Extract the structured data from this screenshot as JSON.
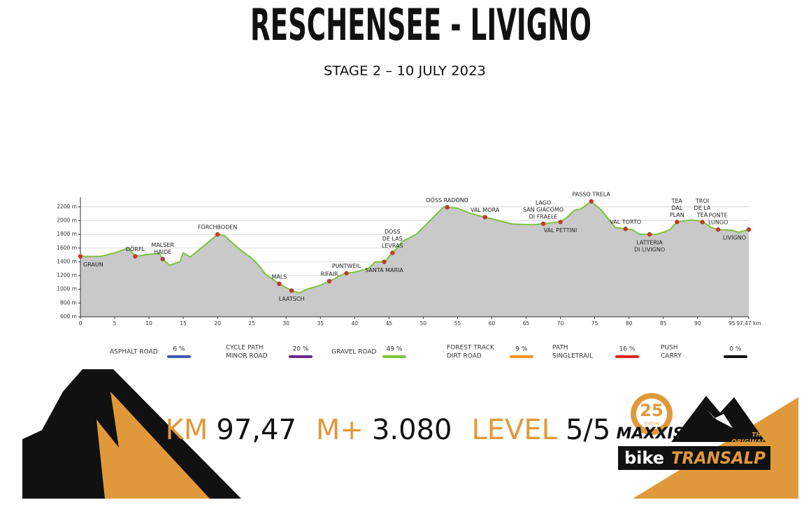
{
  "chart_data": {
    "type": "elevation",
    "title": "RESCHENSEE - LIVIGNO",
    "subtitle": "STAGE 2 – 10 JULY 2023",
    "x": [
      0,
      3,
      5,
      7,
      8,
      10,
      11.5,
      12,
      13,
      14.5,
      15,
      16,
      18,
      20,
      21,
      23,
      25,
      26,
      27,
      29,
      31,
      32,
      33,
      35,
      37,
      38.5,
      40,
      42,
      43,
      44.5,
      45,
      46,
      47,
      49,
      51,
      53,
      55,
      57,
      59,
      61,
      63,
      66,
      68,
      70,
      71,
      72,
      73,
      74.5,
      76,
      78,
      79.5,
      80.5,
      81.5,
      84,
      85,
      86,
      87,
      89,
      90,
      91,
      92,
      93,
      95,
      96,
      97.47
    ],
    "values": [
      1480,
      1480,
      1530,
      1600,
      1480,
      1510,
      1520,
      1440,
      1350,
      1400,
      1530,
      1470,
      1630,
      1800,
      1780,
      1600,
      1450,
      1350,
      1220,
      1080,
      970,
      950,
      1000,
      1060,
      1150,
      1230,
      1250,
      1300,
      1400,
      1400,
      1480,
      1580,
      1700,
      1800,
      2000,
      2200,
      2180,
      2100,
      2050,
      2000,
      1950,
      1940,
      1960,
      1980,
      2050,
      2150,
      2170,
      2280,
      2150,
      1900,
      1880,
      1870,
      1800,
      1800,
      1830,
      1870,
      1980,
      2010,
      2000,
      1970,
      1900,
      1870,
      1860,
      1830,
      1870
    ],
    "fill_color": "#c9c9c9",
    "line_color": "#7dc242",
    "point_color": "#c0392b",
    "xlim": [
      0,
      97.47
    ],
    "xticks": [
      0,
      5,
      10,
      15,
      20,
      25,
      30,
      35,
      40,
      45,
      50,
      55,
      60,
      65,
      70,
      75,
      80,
      85,
      90,
      95,
      {
        "value": 97.47,
        "label": "97.47 km"
      }
    ],
    "ylim": [
      600,
      2300
    ],
    "yticks": [
      {
        "value": 600,
        "label": "600 m"
      },
      {
        "value": 800,
        "label": "800 m"
      },
      {
        "value": 1000,
        "label": "1000 m"
      },
      {
        "value": 1200,
        "label": "1200 m"
      },
      {
        "value": 1400,
        "label": "1400 m"
      },
      {
        "value": 1600,
        "label": "1600 m"
      },
      {
        "value": 1800,
        "label": "1800 m"
      },
      {
        "value": 2000,
        "label": "2000 m"
      },
      {
        "value": 2200,
        "label": "2200 m"
      }
    ],
    "grid": true,
    "annotations": [
      {
        "x": 0,
        "lines": [
          "GRAUN"
        ],
        "place": "below"
      },
      {
        "x": 8,
        "lines": [
          "DÖRFL"
        ],
        "place": "above"
      },
      {
        "x": 12,
        "lines": [
          "MALSER",
          "HAIDE"
        ],
        "place": "above"
      },
      {
        "x": 20,
        "lines": [
          "FÖRCHBODEN"
        ],
        "place": "above"
      },
      {
        "x": 29,
        "lines": [
          "MALS"
        ],
        "place": "above"
      },
      {
        "x": 30.8,
        "lines": [
          "LAATSCH"
        ],
        "place": "below"
      },
      {
        "x": 36.3,
        "lines": [
          "RIFAIR"
        ],
        "place": "above"
      },
      {
        "x": 38.8,
        "lines": [
          "PUNTWEIL"
        ],
        "place": "above"
      },
      {
        "x": 45.5,
        "lines": [
          "DOSS",
          "DE LAS",
          "LEVRAS"
        ],
        "place": "above"
      },
      {
        "x": 44.3,
        "lines": [
          "SANTA MARIA"
        ],
        "place": "below"
      },
      {
        "x": 53.5,
        "lines": [
          "DÖSS RADOND"
        ],
        "place": "above"
      },
      {
        "x": 59,
        "lines": [
          "VAL MORA"
        ],
        "place": "above"
      },
      {
        "x": 67.5,
        "lines": [
          "LAGO",
          "SAN GIACOMO",
          "DI FRAELE"
        ],
        "place": "above"
      },
      {
        "x": 70,
        "lines": [
          "VAL PETTINI"
        ],
        "place": "below"
      },
      {
        "x": 74.5,
        "lines": [
          "PASSO TRELA"
        ],
        "place": "above"
      },
      {
        "x": 79.5,
        "lines": [
          "VAL TORTO"
        ],
        "place": "above"
      },
      {
        "x": 83,
        "lines": [
          "LATTERIA",
          "DI LIVIGNO"
        ],
        "place": "below"
      },
      {
        "x": 87,
        "lines": [
          "TEA",
          "DAL",
          "PLAN"
        ],
        "place": "above"
      },
      {
        "x": 90.7,
        "lines": [
          "TROI",
          "DE LA",
          "TEA"
        ],
        "place": "above"
      },
      {
        "x": 93,
        "lines": [
          "PONTE",
          "LUNGO"
        ],
        "place": "above"
      },
      {
        "x": 97.47,
        "lines": [
          "LIVIGNO"
        ],
        "place": "below"
      }
    ],
    "legend": [
      {
        "lines": [
          "ASPHALT ROAD"
        ],
        "value": 6,
        "value_label": "6 %",
        "color": "#3a5bb8"
      },
      {
        "lines": [
          "CYCLE PATH",
          "MINOR ROAD"
        ],
        "value": 20,
        "value_label": "20 %",
        "color": "#6a2a8c"
      },
      {
        "lines": [
          "GRAVEL ROAD"
        ],
        "value": 49,
        "value_label": "49 %",
        "color": "#7dc242"
      },
      {
        "lines": [
          "FOREST TRACK",
          "DIRT ROAD"
        ],
        "value": 9,
        "value_label": "9 %",
        "color": "#f0952a"
      },
      {
        "lines": [
          "PATH",
          "SINGLETRAIL"
        ],
        "value": 16,
        "value_label": "16 %",
        "color": "#e0231c"
      },
      {
        "lines": [
          "PUSH",
          "CARRY"
        ],
        "value": 0,
        "value_label": "0 %",
        "color": "#111111"
      }
    ]
  },
  "stats": [
    {
      "label": "KM",
      "value": "97,47"
    },
    {
      "label": "M+",
      "value": "3.080"
    },
    {
      "label": "LEVEL",
      "value": "5/5"
    }
  ],
  "logo": {
    "number": "25",
    "edition": "EDITION",
    "brand": "MAXXIS",
    "bike": "bike",
    "transalp": "TRANSALP",
    "tagline": [
      "THE",
      "ORIGINAL"
    ]
  }
}
